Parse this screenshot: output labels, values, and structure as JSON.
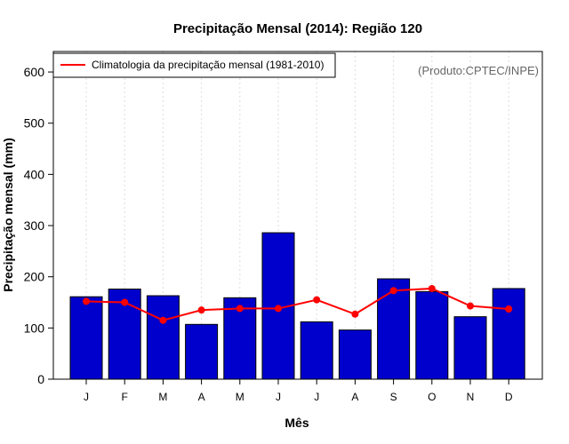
{
  "chart_data": {
    "type": "bar",
    "title": "Precipitação Mensal (2014): Região 120",
    "xlabel": "Mês",
    "ylabel": "Precipitação mensal (mm)",
    "ylim": [
      0,
      640
    ],
    "yticks": [
      0,
      100,
      200,
      300,
      400,
      500,
      600
    ],
    "categories": [
      "J",
      "F",
      "M",
      "A",
      "M",
      "J",
      "J",
      "A",
      "S",
      "O",
      "N",
      "D"
    ],
    "series": [
      {
        "name": "Precipitação mensal 2014",
        "type": "bar",
        "values": [
          161,
          176,
          163,
          107,
          159,
          286,
          112,
          96,
          196,
          171,
          122,
          177
        ]
      },
      {
        "name": "Climatologia da precipitação mensal (1981-2010)",
        "type": "line",
        "values": [
          152,
          150,
          115,
          135,
          138,
          138,
          155,
          127,
          173,
          177,
          143,
          137
        ]
      }
    ],
    "legend": {
      "position": "top-left",
      "label": "Climatologia da precipitação mensal (1981-2010)"
    },
    "annotation": "(Produto:CPTEC/INPE)",
    "grid": "vertical dotted",
    "colors": {
      "bar_fill": "#0000cc",
      "line": "#ff0000",
      "grid": "#dddddd",
      "credit": "#666666"
    }
  }
}
